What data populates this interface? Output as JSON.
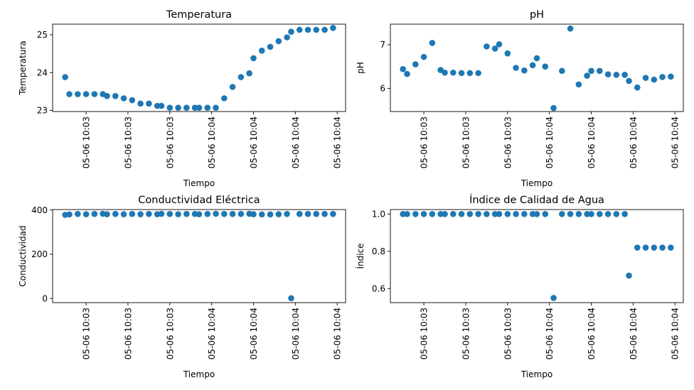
{
  "figure": {
    "marker_color": "#1f77b4"
  },
  "chart_data": [
    {
      "type": "scatter",
      "title": "Temperatura",
      "xlabel": "Tiempo",
      "ylabel": "Temperatura",
      "xlim": [
        -2.0,
        68.0
      ],
      "ylim": [
        22.97,
        25.28
      ],
      "yticks": [
        23,
        24,
        25
      ],
      "ytick_labels": [
        "23",
        "24",
        "25"
      ],
      "xticks": [
        6,
        16,
        26,
        36,
        46,
        56,
        66
      ],
      "xtick_labels": [
        "05-06 10:03",
        "05-06 10:03",
        "05-06 10:03",
        "05-06 10:04",
        "05-06 10:04",
        "05-06 10:04",
        "05-06 10:04"
      ],
      "x": [
        1,
        2,
        4,
        6,
        8,
        10,
        11,
        13,
        15,
        17,
        19,
        21,
        23,
        24,
        26,
        28,
        30,
        32,
        33,
        35,
        37,
        39,
        41,
        43,
        45,
        46,
        48,
        50,
        52,
        54,
        55,
        57,
        59,
        61,
        63,
        65
      ],
      "y": [
        23.88,
        23.43,
        23.43,
        23.43,
        23.43,
        23.43,
        23.38,
        23.38,
        23.32,
        23.27,
        23.18,
        23.18,
        23.12,
        23.12,
        23.07,
        23.07,
        23.07,
        23.07,
        23.07,
        23.07,
        23.07,
        23.32,
        23.62,
        23.88,
        23.98,
        24.38,
        24.58,
        24.68,
        24.83,
        24.93,
        25.08,
        25.13,
        25.13,
        25.13,
        25.13,
        25.18
      ]
    },
    {
      "type": "scatter",
      "title": "pH",
      "xlabel": "Tiempo",
      "ylabel": "pH",
      "xlim": [
        -2.0,
        68.0
      ],
      "ylim": [
        5.47,
        7.47
      ],
      "yticks": [
        6,
        7
      ],
      "ytick_labels": [
        "6",
        "7"
      ],
      "xticks": [
        6,
        16,
        26,
        36,
        46,
        56,
        66
      ],
      "xtick_labels": [
        "05-06 10:03",
        "05-06 10:03",
        "05-06 10:03",
        "05-06 10:04",
        "05-06 10:04",
        "05-06 10:04",
        "05-06 10:04"
      ],
      "x": [
        1,
        2,
        4,
        6,
        8,
        10,
        11,
        13,
        15,
        17,
        19,
        21,
        23,
        24,
        26,
        28,
        30,
        32,
        33,
        35,
        37,
        39,
        41,
        43,
        45,
        46,
        48,
        50,
        52,
        54,
        55,
        57,
        59,
        61,
        63,
        65
      ],
      "y": [
        6.44,
        6.33,
        6.55,
        6.72,
        7.04,
        6.42,
        6.36,
        6.36,
        6.35,
        6.35,
        6.35,
        6.96,
        6.91,
        7.01,
        6.8,
        6.47,
        6.41,
        6.53,
        6.69,
        6.5,
        5.55,
        6.4,
        7.37,
        6.09,
        6.29,
        6.4,
        6.4,
        6.32,
        6.31,
        6.31,
        6.17,
        6.02,
        6.24,
        6.2,
        6.26,
        6.27
      ]
    },
    {
      "type": "scatter",
      "title": "Conductividad Eléctrica",
      "xlabel": "Tiempo",
      "ylabel": "Conductividad",
      "xlim": [
        -2.0,
        68.0
      ],
      "ylim": [
        -19.0,
        402.0
      ],
      "yticks": [
        0,
        200,
        400
      ],
      "ytick_labels": [
        "0",
        "200",
        "400"
      ],
      "xticks": [
        6,
        16,
        26,
        36,
        46,
        56,
        66
      ],
      "xtick_labels": [
        "05-06 10:03",
        "05-06 10:03",
        "05-06 10:03",
        "05-06 10:04",
        "05-06 10:04",
        "05-06 10:04",
        "05-06 10:04"
      ],
      "x": [
        1,
        2,
        4,
        6,
        8,
        10,
        11,
        13,
        15,
        17,
        19,
        21,
        23,
        24,
        26,
        28,
        30,
        32,
        33,
        35,
        37,
        39,
        41,
        43,
        45,
        46,
        48,
        50,
        52,
        54,
        55,
        57,
        59,
        61,
        63,
        65
      ],
      "y": [
        378,
        380,
        382,
        381,
        382,
        383,
        381,
        382,
        381,
        382,
        381,
        382,
        381,
        383,
        382,
        381,
        382,
        382,
        381,
        382,
        383,
        382,
        382,
        382,
        383,
        381,
        380,
        380,
        381,
        382,
        1,
        382,
        382,
        382,
        382,
        382
      ]
    },
    {
      "type": "scatter",
      "title": "Índice de Calidad de Agua",
      "xlabel": "Tiempo",
      "ylabel": "Índice",
      "xlim": [
        -2.0,
        68.0
      ],
      "ylim": [
        0.525,
        1.024
      ],
      "yticks": [
        0.6,
        0.8,
        1.0
      ],
      "ytick_labels": [
        "0.6",
        "0.8",
        "1.0"
      ],
      "xticks": [
        6,
        16,
        26,
        36,
        46,
        56,
        66
      ],
      "xtick_labels": [
        "05-06 10:03",
        "05-06 10:03",
        "05-06 10:03",
        "05-06 10:04",
        "05-06 10:04",
        "05-06 10:04",
        "05-06 10:04"
      ],
      "x": [
        1,
        2,
        4,
        6,
        8,
        10,
        11,
        13,
        15,
        17,
        19,
        21,
        23,
        24,
        26,
        28,
        30,
        32,
        33,
        35,
        37,
        39,
        41,
        43,
        45,
        46,
        48,
        50,
        52,
        54,
        55,
        57,
        59,
        61,
        63,
        65
      ],
      "y": [
        1.0,
        1.0,
        1.0,
        1.0,
        1.0,
        1.0,
        1.0,
        1.0,
        1.0,
        1.0,
        1.0,
        1.0,
        1.0,
        1.0,
        1.0,
        1.0,
        1.0,
        1.0,
        1.0,
        1.0,
        0.55,
        1.0,
        1.0,
        1.0,
        1.0,
        1.0,
        1.0,
        1.0,
        1.0,
        1.0,
        0.67,
        0.82,
        0.82,
        0.82,
        0.82,
        0.82
      ]
    }
  ]
}
